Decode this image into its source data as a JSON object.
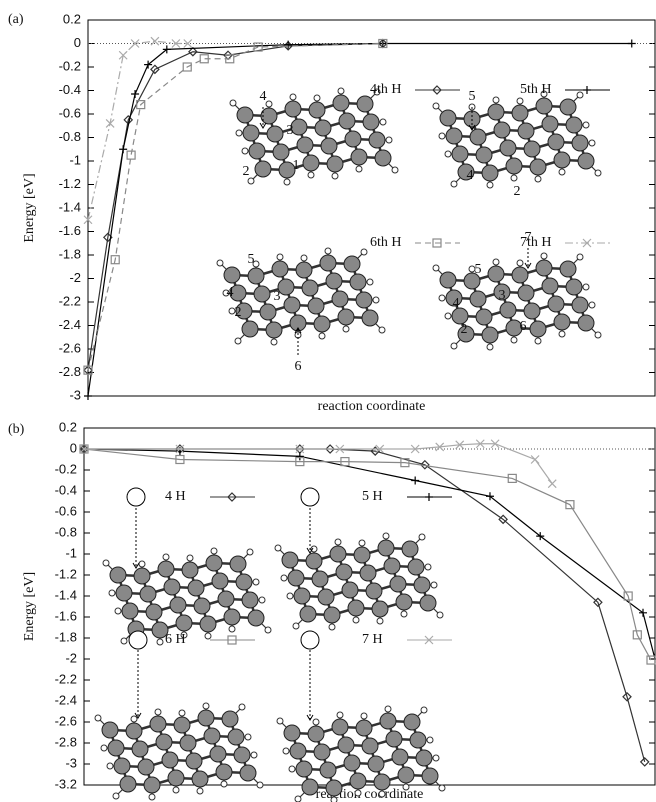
{
  "chart_data": [
    {
      "type": "line",
      "panel_label": "(a)",
      "ylabel": "Energy [eV]",
      "xlabel": "reaction coordinate",
      "xlim": [
        0,
        1
      ],
      "ylim": [
        -3,
        0.2
      ],
      "yticks": [
        0.2,
        0,
        -0.2,
        -0.4,
        -0.6,
        -0.8,
        -1,
        -1.2,
        -1.4,
        -1.6,
        -1.8,
        -2,
        -2.2,
        -2.4,
        -2.6,
        -2.8,
        -3
      ],
      "grid": false,
      "series": [
        {
          "name": "4th H",
          "color": "#333333",
          "marker": "diamond",
          "dash": "solid",
          "x": [
            0,
            0.035,
            0.071,
            0.118,
            0.185,
            0.247,
            0.353,
            0.52
          ],
          "values": [
            -2.78,
            -1.65,
            -0.65,
            -0.22,
            -0.07,
            -0.1,
            -0.02,
            0
          ]
        },
        {
          "name": "5th H",
          "color": "#000000",
          "marker": "plus",
          "dash": "solid",
          "x": [
            0,
            0.062,
            0.083,
            0.106,
            0.139,
            0.353,
            0.52,
            0.959
          ],
          "values": [
            -3,
            -0.9,
            -0.43,
            -0.18,
            -0.05,
            -0.01,
            0,
            0
          ]
        },
        {
          "name": "6th H",
          "color": "#888888",
          "marker": "square",
          "dash": "dash",
          "x": [
            0,
            0.048,
            0.076,
            0.093,
            0.175,
            0.205,
            0.25,
            0.3,
            0.52
          ],
          "values": [
            -2.78,
            -1.84,
            -0.95,
            -0.52,
            -0.2,
            -0.13,
            -0.13,
            -0.03,
            0
          ]
        },
        {
          "name": "7th H",
          "color": "#aaaaaa",
          "marker": "x",
          "dash": "dashdot",
          "x": [
            0,
            0.039,
            0.062,
            0.083,
            0.118,
            0.155,
            0.176
          ],
          "values": [
            -1.5,
            -0.68,
            -0.1,
            0,
            0.02,
            0,
            0
          ]
        }
      ],
      "annotations": [
        "4",
        "2",
        "1",
        "3",
        "5",
        "4",
        "2",
        "5",
        "4",
        "2",
        "3",
        "6",
        "7",
        "5",
        "4",
        "2",
        "3",
        "6"
      ]
    },
    {
      "type": "line",
      "panel_label": "(b)",
      "ylabel": "Energy [eV]",
      "xlabel": "reaction coordinate",
      "xlim": [
        0,
        1
      ],
      "ylim": [
        -3.2,
        0.2
      ],
      "yticks": [
        0.2,
        0,
        -0.2,
        -0.4,
        -0.6,
        -0.8,
        -1,
        -1.2,
        -1.4,
        -1.6,
        -1.8,
        -2,
        -2.2,
        -2.4,
        -2.6,
        -2.8,
        -3,
        -3.2
      ],
      "grid": false,
      "series": [
        {
          "name": "4 H",
          "color": "#333333",
          "marker": "diamond",
          "dash": "solid",
          "x": [
            0,
            0.168,
            0.378,
            0.431,
            0.51,
            0.597,
            0.734,
            0.9,
            0.951,
            0.982
          ],
          "values": [
            0,
            0,
            0,
            0,
            -0.02,
            -0.15,
            -0.67,
            -1.46,
            -2.36,
            -2.98
          ]
        },
        {
          "name": "5 H",
          "color": "#000000",
          "marker": "plus",
          "dash": "solid",
          "x": [
            0,
            0.168,
            0.378,
            0.58,
            0.711,
            0.799,
            0.979,
            1
          ],
          "values": [
            0,
            -0.02,
            -0.07,
            -0.3,
            -0.45,
            -0.83,
            -1.56,
            -2
          ]
        },
        {
          "name": "6 H",
          "color": "#888888",
          "marker": "square",
          "dash": "solid",
          "x": [
            0,
            0.168,
            0.378,
            0.457,
            0.562,
            0.75,
            0.851,
            0.953,
            0.969,
            0.993
          ],
          "values": [
            0,
            -0.1,
            -0.12,
            -0.12,
            -0.13,
            -0.28,
            -0.53,
            -1.4,
            -1.77,
            -2.01
          ]
        },
        {
          "name": "7 H",
          "color": "#aaaaaa",
          "marker": "x",
          "dash": "solid",
          "x": [
            0,
            0.168,
            0.378,
            0.448,
            0.518,
            0.58,
            0.623,
            0.658,
            0.694,
            0.72,
            0.79,
            0.82
          ],
          "values": [
            0,
            0,
            0,
            0,
            0,
            0,
            0.02,
            0.04,
            0.05,
            0.05,
            -0.1,
            -0.33
          ]
        }
      ]
    }
  ]
}
